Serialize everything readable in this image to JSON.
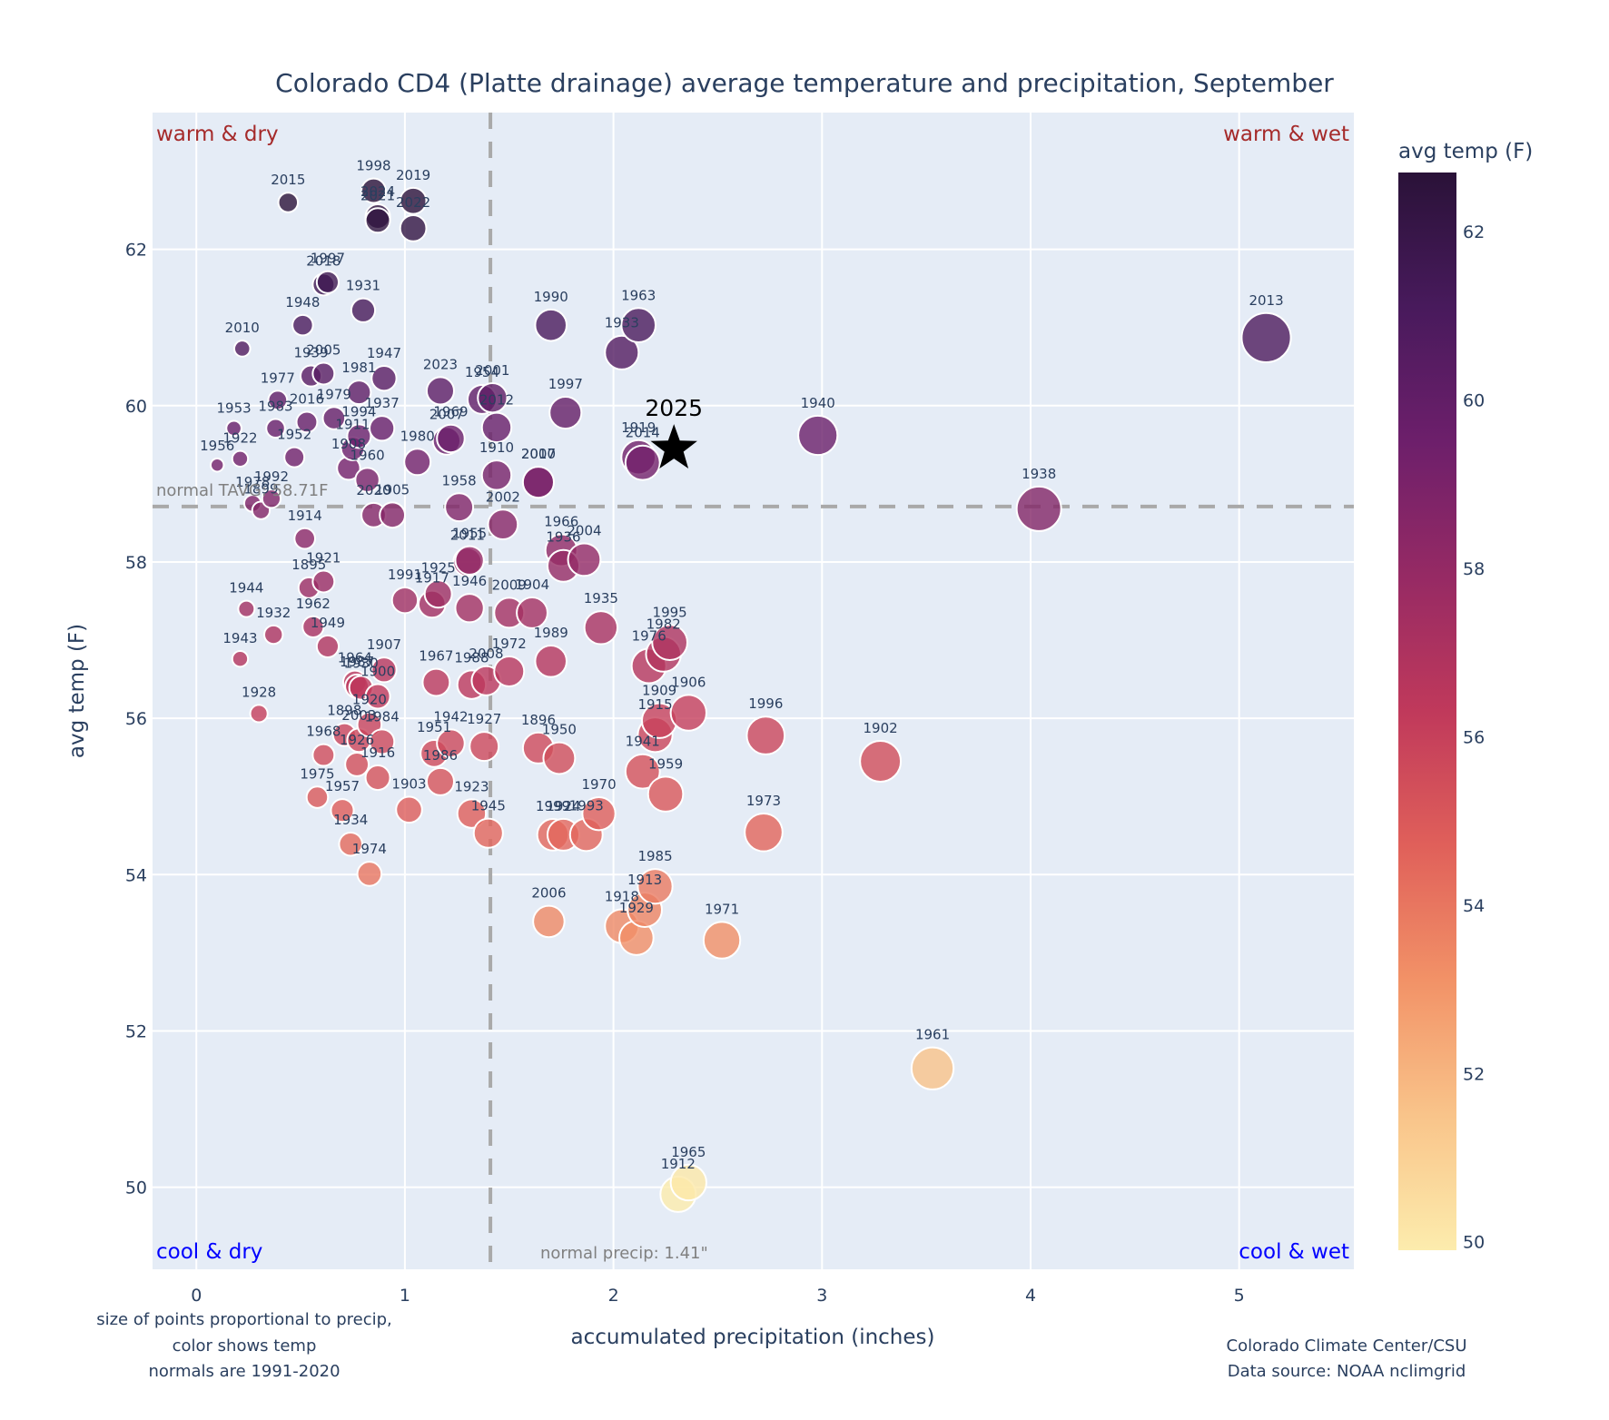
{
  "chart_data": {
    "type": "scatter",
    "title": "Colorado CD4 (Platte drainage) average temperature and precipitation, September",
    "xlabel": "accumulated precipitation (inches)",
    "ylabel": "avg temp (F)",
    "xlim": [
      -0.21,
      5.55
    ],
    "ylim": [
      48.95,
      63.75
    ],
    "xticks": [
      0,
      1,
      2,
      3,
      4,
      5
    ],
    "yticks": [
      50,
      52,
      54,
      56,
      58,
      60,
      62
    ],
    "grid": true,
    "normals": {
      "precip": 1.41,
      "temp": 58.71,
      "precip_label": "normal precip: 1.41\"",
      "temp_label": "normal TAVG: 58.71F"
    },
    "quadrant_labels": {
      "top_left": "warm & dry",
      "top_right": "warm & wet",
      "bottom_left": "cool & dry",
      "bottom_right": "cool & wet"
    },
    "colorbar": {
      "title": "avg temp (F)",
      "range": [
        49.9,
        62.7
      ],
      "ticks": [
        50,
        52,
        54,
        56,
        58,
        60,
        62
      ],
      "colormap": "magma-reversed",
      "stops": [
        "#fcecad",
        "#f9c48a",
        "#f29267",
        "#e0605a",
        "#c0395b",
        "#962a64",
        "#6d1f6b",
        "#481a5c",
        "#2a1238"
      ]
    },
    "size_encoding": "precip",
    "highlight": {
      "label": "2025",
      "precip": 2.29,
      "temp": 59.45,
      "marker": "star"
    },
    "points": [
      {
        "year": "2015",
        "precip": 0.44,
        "temp": 62.6
      },
      {
        "year": "1998",
        "precip": 0.85,
        "temp": 62.75
      },
      {
        "year": "2024",
        "precip": 0.87,
        "temp": 62.42
      },
      {
        "year": "2021",
        "precip": 0.87,
        "temp": 62.37
      },
      {
        "year": "2019",
        "precip": 1.04,
        "temp": 62.62
      },
      {
        "year": "2022",
        "precip": 1.04,
        "temp": 62.27
      },
      {
        "year": "1997",
        "precip": 0.63,
        "temp": 61.58
      },
      {
        "year": "2018",
        "precip": 0.61,
        "temp": 61.55
      },
      {
        "year": "1931",
        "precip": 0.8,
        "temp": 61.22
      },
      {
        "year": "1948",
        "precip": 0.51,
        "temp": 61.03
      },
      {
        "year": "2010",
        "precip": 0.22,
        "temp": 60.73
      },
      {
        "year": "1939",
        "precip": 0.55,
        "temp": 60.38
      },
      {
        "year": "2005",
        "precip": 0.61,
        "temp": 60.41
      },
      {
        "year": "1947",
        "precip": 0.9,
        "temp": 60.35
      },
      {
        "year": "1981",
        "precip": 0.78,
        "temp": 60.17
      },
      {
        "year": "1977",
        "precip": 0.39,
        "temp": 60.07
      },
      {
        "year": "2016",
        "precip": 0.53,
        "temp": 59.79
      },
      {
        "year": "1979",
        "precip": 0.66,
        "temp": 59.84
      },
      {
        "year": "1994",
        "precip": 0.78,
        "temp": 59.61
      },
      {
        "year": "1937",
        "precip": 0.89,
        "temp": 59.71
      },
      {
        "year": "1911",
        "precip": 0.75,
        "temp": 59.45
      },
      {
        "year": "1953",
        "precip": 0.18,
        "temp": 59.71
      },
      {
        "year": "1983",
        "precip": 0.38,
        "temp": 59.71
      },
      {
        "year": "1952",
        "precip": 0.47,
        "temp": 59.34
      },
      {
        "year": "1922",
        "precip": 0.21,
        "temp": 59.32
      },
      {
        "year": "1956",
        "precip": 0.1,
        "temp": 59.24
      },
      {
        "year": "1908",
        "precip": 0.73,
        "temp": 59.2
      },
      {
        "year": "1960",
        "precip": 0.82,
        "temp": 59.05
      },
      {
        "year": "1980",
        "precip": 1.06,
        "temp": 59.28
      },
      {
        "year": "1969",
        "precip": 1.22,
        "temp": 59.58
      },
      {
        "year": "2023",
        "precip": 1.17,
        "temp": 60.19
      },
      {
        "year": "2007",
        "precip": 1.2,
        "temp": 59.55
      },
      {
        "year": "1954",
        "precip": 1.37,
        "temp": 60.08
      },
      {
        "year": "2001",
        "precip": 1.42,
        "temp": 60.1
      },
      {
        "year": "2012",
        "precip": 1.44,
        "temp": 59.72
      },
      {
        "year": "1910",
        "precip": 1.44,
        "temp": 59.11
      },
      {
        "year": "2017",
        "precip": 1.64,
        "temp": 59.02
      },
      {
        "year": "1990",
        "precip": 1.7,
        "temp": 61.03
      },
      {
        "year": "1997b",
        "label": "1997",
        "precip": 1.77,
        "temp": 59.91
      },
      {
        "year": "1963",
        "precip": 2.12,
        "temp": 61.03
      },
      {
        "year": "1933",
        "precip": 2.04,
        "temp": 60.68
      },
      {
        "year": "1919",
        "precip": 2.12,
        "temp": 59.34
      },
      {
        "year": "2014",
        "precip": 2.14,
        "temp": 59.27
      },
      {
        "year": "1940",
        "precip": 2.98,
        "temp": 59.62
      },
      {
        "year": "2013",
        "precip": 5.13,
        "temp": 60.87
      },
      {
        "year": "1938",
        "precip": 4.04,
        "temp": 58.68
      },
      {
        "year": "1992",
        "precip": 0.36,
        "temp": 58.81
      },
      {
        "year": "1978",
        "precip": 0.27,
        "temp": 58.75
      },
      {
        "year": "1899",
        "precip": 0.31,
        "temp": 58.66
      },
      {
        "year": "2020",
        "precip": 0.85,
        "temp": 58.6
      },
      {
        "year": "1905",
        "precip": 0.94,
        "temp": 58.6
      },
      {
        "year": "1958",
        "precip": 1.26,
        "temp": 58.7
      },
      {
        "year": "2002",
        "precip": 1.47,
        "temp": 58.48
      },
      {
        "year": "2000",
        "precip": 1.64,
        "temp": 59.02
      },
      {
        "year": "1966",
        "precip": 1.75,
        "temp": 58.15
      },
      {
        "year": "2004",
        "precip": 1.86,
        "temp": 58.03
      },
      {
        "year": "1936",
        "precip": 1.76,
        "temp": 57.95
      },
      {
        "year": "1955",
        "precip": 1.31,
        "temp": 58.02
      },
      {
        "year": "2011",
        "precip": 1.3,
        "temp": 58.0
      },
      {
        "year": "1914",
        "precip": 0.52,
        "temp": 58.3
      },
      {
        "year": "1921",
        "precip": 0.61,
        "temp": 57.75
      },
      {
        "year": "1895",
        "precip": 0.54,
        "temp": 57.67
      },
      {
        "year": "1991",
        "precip": 1.0,
        "temp": 57.51
      },
      {
        "year": "1925",
        "precip": 1.16,
        "temp": 57.59
      },
      {
        "year": "1917",
        "precip": 1.13,
        "temp": 57.46
      },
      {
        "year": "1946",
        "precip": 1.31,
        "temp": 57.41
      },
      {
        "year": "2009",
        "precip": 1.5,
        "temp": 57.35
      },
      {
        "year": "1904",
        "precip": 1.61,
        "temp": 57.35
      },
      {
        "year": "1935",
        "precip": 1.94,
        "temp": 57.16
      },
      {
        "year": "1944",
        "precip": 0.24,
        "temp": 57.4
      },
      {
        "year": "1932",
        "precip": 0.37,
        "temp": 57.07
      },
      {
        "year": "1962",
        "precip": 0.56,
        "temp": 57.17
      },
      {
        "year": "1949",
        "precip": 0.63,
        "temp": 56.92
      },
      {
        "year": "1943",
        "precip": 0.21,
        "temp": 56.76
      },
      {
        "year": "1995",
        "precip": 2.27,
        "temp": 56.97
      },
      {
        "year": "1982",
        "precip": 2.24,
        "temp": 56.82
      },
      {
        "year": "1976",
        "precip": 2.17,
        "temp": 56.67
      },
      {
        "year": "1989",
        "precip": 1.7,
        "temp": 56.73
      },
      {
        "year": "1972",
        "precip": 1.5,
        "temp": 56.6
      },
      {
        "year": "2008",
        "precip": 1.39,
        "temp": 56.48
      },
      {
        "year": "1988",
        "precip": 1.32,
        "temp": 56.43
      },
      {
        "year": "1967",
        "precip": 1.15,
        "temp": 56.46
      },
      {
        "year": "1907",
        "precip": 0.9,
        "temp": 56.62
      },
      {
        "year": "1964",
        "precip": 0.76,
        "temp": 56.46
      },
      {
        "year": "1987",
        "precip": 0.77,
        "temp": 56.41
      },
      {
        "year": "1930",
        "precip": 0.79,
        "temp": 56.39
      },
      {
        "year": "1900",
        "precip": 0.87,
        "temp": 56.28
      },
      {
        "year": "1920",
        "precip": 0.83,
        "temp": 55.92
      },
      {
        "year": "1898",
        "precip": 0.71,
        "temp": 55.79
      },
      {
        "year": "2003",
        "precip": 0.78,
        "temp": 55.72
      },
      {
        "year": "1984",
        "precip": 0.89,
        "temp": 55.7
      },
      {
        "year": "1928",
        "precip": 0.3,
        "temp": 56.06
      },
      {
        "year": "1906",
        "precip": 2.36,
        "temp": 56.07
      },
      {
        "year": "1909",
        "precip": 2.22,
        "temp": 55.97
      },
      {
        "year": "1915",
        "precip": 2.2,
        "temp": 55.79
      },
      {
        "year": "1996",
        "precip": 2.73,
        "temp": 55.78
      },
      {
        "year": "1902",
        "precip": 3.28,
        "temp": 55.45
      },
      {
        "year": "1968",
        "precip": 0.61,
        "temp": 55.53
      },
      {
        "year": "1926",
        "precip": 0.77,
        "temp": 55.41
      },
      {
        "year": "1916",
        "precip": 0.87,
        "temp": 55.24
      },
      {
        "year": "1951",
        "precip": 1.14,
        "temp": 55.55
      },
      {
        "year": "1942",
        "precip": 1.22,
        "temp": 55.68
      },
      {
        "year": "1927",
        "precip": 1.38,
        "temp": 55.64
      },
      {
        "year": "1896",
        "precip": 1.64,
        "temp": 55.62
      },
      {
        "year": "1950",
        "precip": 1.74,
        "temp": 55.49
      },
      {
        "year": "1941",
        "precip": 2.14,
        "temp": 55.32
      },
      {
        "year": "1959",
        "precip": 2.25,
        "temp": 55.03
      },
      {
        "year": "1986",
        "precip": 1.17,
        "temp": 55.19
      },
      {
        "year": "1975",
        "precip": 0.58,
        "temp": 54.99
      },
      {
        "year": "1957",
        "precip": 0.7,
        "temp": 54.82
      },
      {
        "year": "1903",
        "precip": 1.02,
        "temp": 54.83
      },
      {
        "year": "1923",
        "precip": 1.32,
        "temp": 54.78
      },
      {
        "year": "1970",
        "precip": 1.93,
        "temp": 54.78
      },
      {
        "year": "1934",
        "precip": 0.74,
        "temp": 54.39
      },
      {
        "year": "1945",
        "precip": 1.4,
        "temp": 54.53
      },
      {
        "year": "1999",
        "precip": 1.71,
        "temp": 54.51
      },
      {
        "year": "1924",
        "precip": 1.76,
        "temp": 54.51
      },
      {
        "year": "1993",
        "precip": 1.87,
        "temp": 54.51
      },
      {
        "year": "1973",
        "precip": 2.72,
        "temp": 54.54
      },
      {
        "year": "1974",
        "precip": 0.83,
        "temp": 54.01
      },
      {
        "year": "1985",
        "precip": 2.2,
        "temp": 53.85
      },
      {
        "year": "1913",
        "precip": 2.15,
        "temp": 53.55
      },
      {
        "year": "2006",
        "precip": 1.69,
        "temp": 53.4
      },
      {
        "year": "1918",
        "precip": 2.04,
        "temp": 53.34
      },
      {
        "year": "1929",
        "precip": 2.11,
        "temp": 53.19
      },
      {
        "year": "1971",
        "precip": 2.52,
        "temp": 53.16
      },
      {
        "year": "1961",
        "precip": 3.53,
        "temp": 51.52
      },
      {
        "year": "1965",
        "precip": 2.36,
        "temp": 50.06
      },
      {
        "year": "1912",
        "precip": 2.31,
        "temp": 49.91
      }
    ]
  },
  "notes": {
    "left_lines": [
      "size of points proportional to precip,",
      "color shows temp",
      "normals are 1991-2020"
    ],
    "right_lines": [
      "Colorado Climate Center/CSU",
      "Data source: NOAA nclimgrid"
    ]
  }
}
